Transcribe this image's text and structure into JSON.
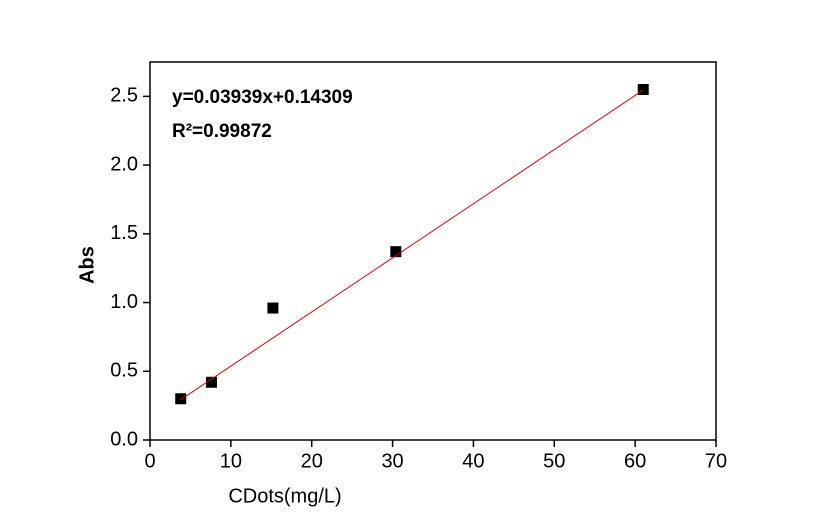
{
  "chart_data": {
    "type": "scatter",
    "xlabel": "CDots(mg/L)",
    "ylabel": "Abs",
    "xlim": [
      0,
      70
    ],
    "xticks": [
      0,
      10,
      20,
      30,
      40,
      50,
      60,
      70
    ],
    "ylim": [
      0,
      2.75
    ],
    "yticks": [
      {
        "value": 0,
        "label": "0.0"
      },
      0.5,
      {
        "value": 1,
        "label": "1.0"
      },
      1.5,
      {
        "value": 2,
        "label": "2.0"
      },
      2.5
    ],
    "annotations": [
      "y=0.03939x+0.14309",
      "R²=0.99872"
    ],
    "series": [
      {
        "kind": "points",
        "color": "#000000",
        "x": [
          3.8,
          7.6,
          15.2,
          30.4,
          61
        ],
        "values": [
          0.3,
          0.42,
          0.96,
          1.37,
          2.55
        ],
        "errors": [
          0.02,
          0.02,
          0.03,
          0.02,
          0.02
        ]
      },
      {
        "kind": "fit",
        "color": "#e00000",
        "x": [
          3.8,
          61
        ],
        "values": [
          0.293,
          2.546
        ]
      }
    ]
  }
}
